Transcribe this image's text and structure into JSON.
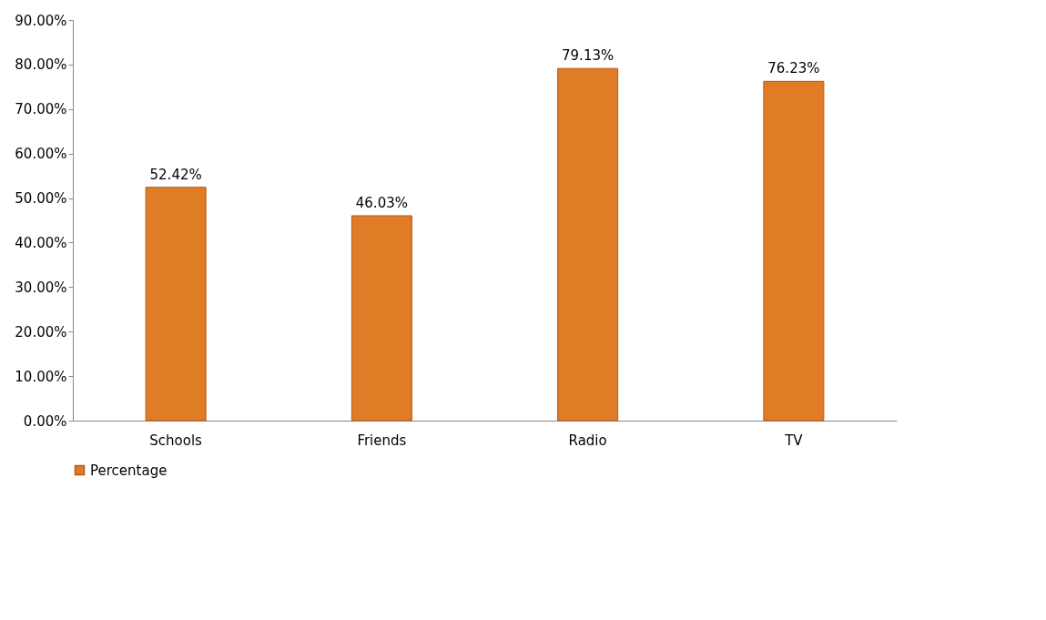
{
  "chart_data": {
    "type": "bar",
    "categories": [
      "Schools",
      "Friends",
      "Radio",
      "TV"
    ],
    "series": [
      {
        "name": "Percentage",
        "color": "#e07b26",
        "values": [
          52.42,
          46.03,
          79.13,
          76.23
        ],
        "value_labels": [
          "52.42%",
          "46.03%",
          "79.13%",
          "76.23%"
        ]
      }
    ],
    "ylim": [
      0,
      90
    ],
    "yticks": [
      {
        "value": 0,
        "label": "0.00%"
      },
      {
        "value": 10,
        "label": "10.00%"
      },
      {
        "value": 20,
        "label": "20.00%"
      },
      {
        "value": 30,
        "label": "30.00%"
      },
      {
        "value": 40,
        "label": "40.00%"
      },
      {
        "value": 50,
        "label": "50.00%"
      },
      {
        "value": 60,
        "label": "60.00%"
      },
      {
        "value": 70,
        "label": "70.00%"
      },
      {
        "value": 80,
        "label": "80.00%"
      },
      {
        "value": 90,
        "label": "90.00%"
      }
    ],
    "grid": false,
    "legend": "bottom"
  }
}
